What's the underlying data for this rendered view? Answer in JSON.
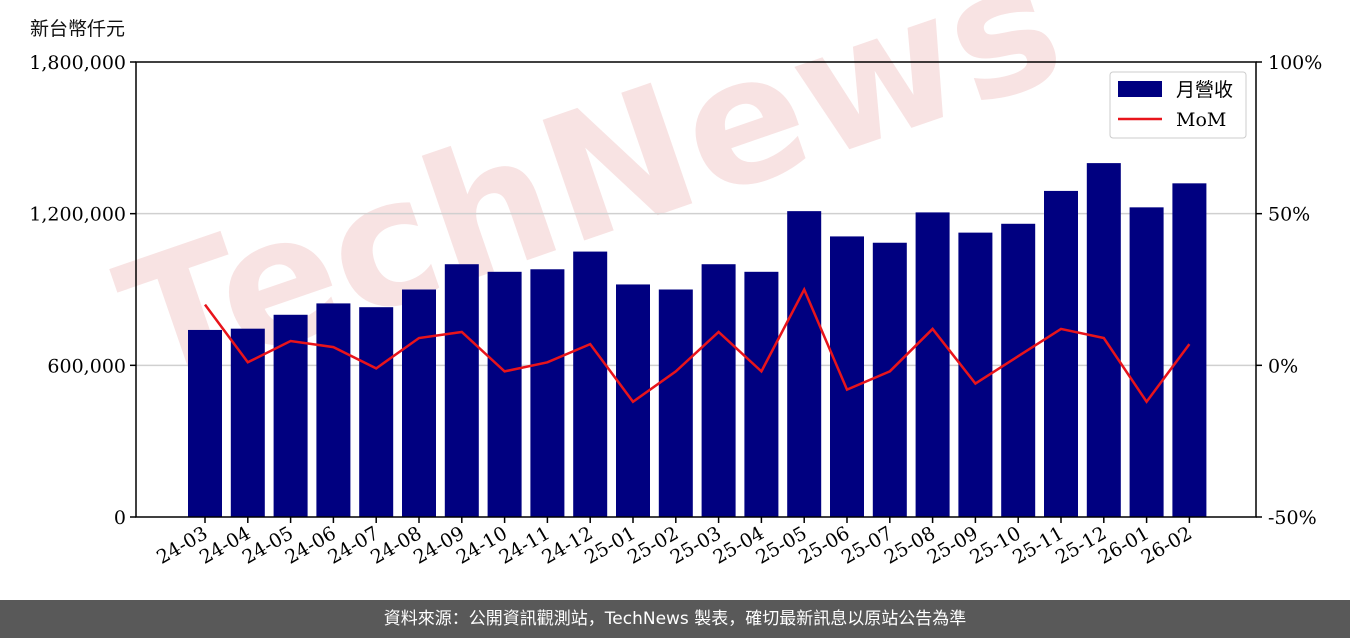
{
  "unit_label": "新台幣仟元",
  "footer": "資料來源：公開資訊觀測站，TechNews 製表，確切最新訊息以原站公告為準",
  "watermark": "TechNews",
  "colors": {
    "bar": "#000080",
    "line": "#e8141b",
    "grid": "#d0d0d0",
    "footer_bg": "#595959",
    "watermark": "#f2cccc"
  },
  "chart_data": {
    "type": "bar",
    "categories": [
      "24-03",
      "24-04",
      "24-05",
      "24-06",
      "24-07",
      "24-08",
      "24-09",
      "24-10",
      "24-11",
      "24-12",
      "25-01",
      "25-02",
      "25-03",
      "25-04",
      "25-05",
      "25-06",
      "25-07",
      "25-08",
      "25-09",
      "25-10",
      "25-11",
      "25-12",
      "26-01",
      "26-02"
    ],
    "series": [
      {
        "name": "月營收",
        "axis": "left",
        "kind": "bar",
        "values": [
          740000,
          745000,
          800000,
          845000,
          830000,
          900000,
          1000000,
          970000,
          980000,
          1050000,
          920000,
          900000,
          1000000,
          970000,
          1210000,
          1110000,
          1085000,
          1205000,
          1125000,
          1160000,
          1290000,
          1400000,
          1225000,
          1320000
        ]
      },
      {
        "name": "MoM",
        "axis": "right",
        "kind": "line",
        "values": [
          20,
          1,
          8,
          6,
          -1,
          9,
          11,
          -2,
          1,
          7,
          -12,
          -2,
          11,
          -2,
          25,
          -8,
          -2,
          12,
          -6,
          3,
          12,
          9,
          -12,
          7
        ]
      }
    ],
    "y_left": {
      "min": 0,
      "max": 1800000,
      "ticks": [
        0,
        600000,
        1200000,
        1800000
      ],
      "tick_labels": [
        "0",
        "600,000",
        "1,200,000",
        "1,800,000"
      ]
    },
    "y_right": {
      "min": -50,
      "max": 100,
      "ticks": [
        -50,
        0,
        50,
        100
      ],
      "tick_labels": [
        "-50%",
        "0%",
        "50%",
        "100%"
      ]
    },
    "grid": "horizontal",
    "legend_position": "top-right"
  }
}
